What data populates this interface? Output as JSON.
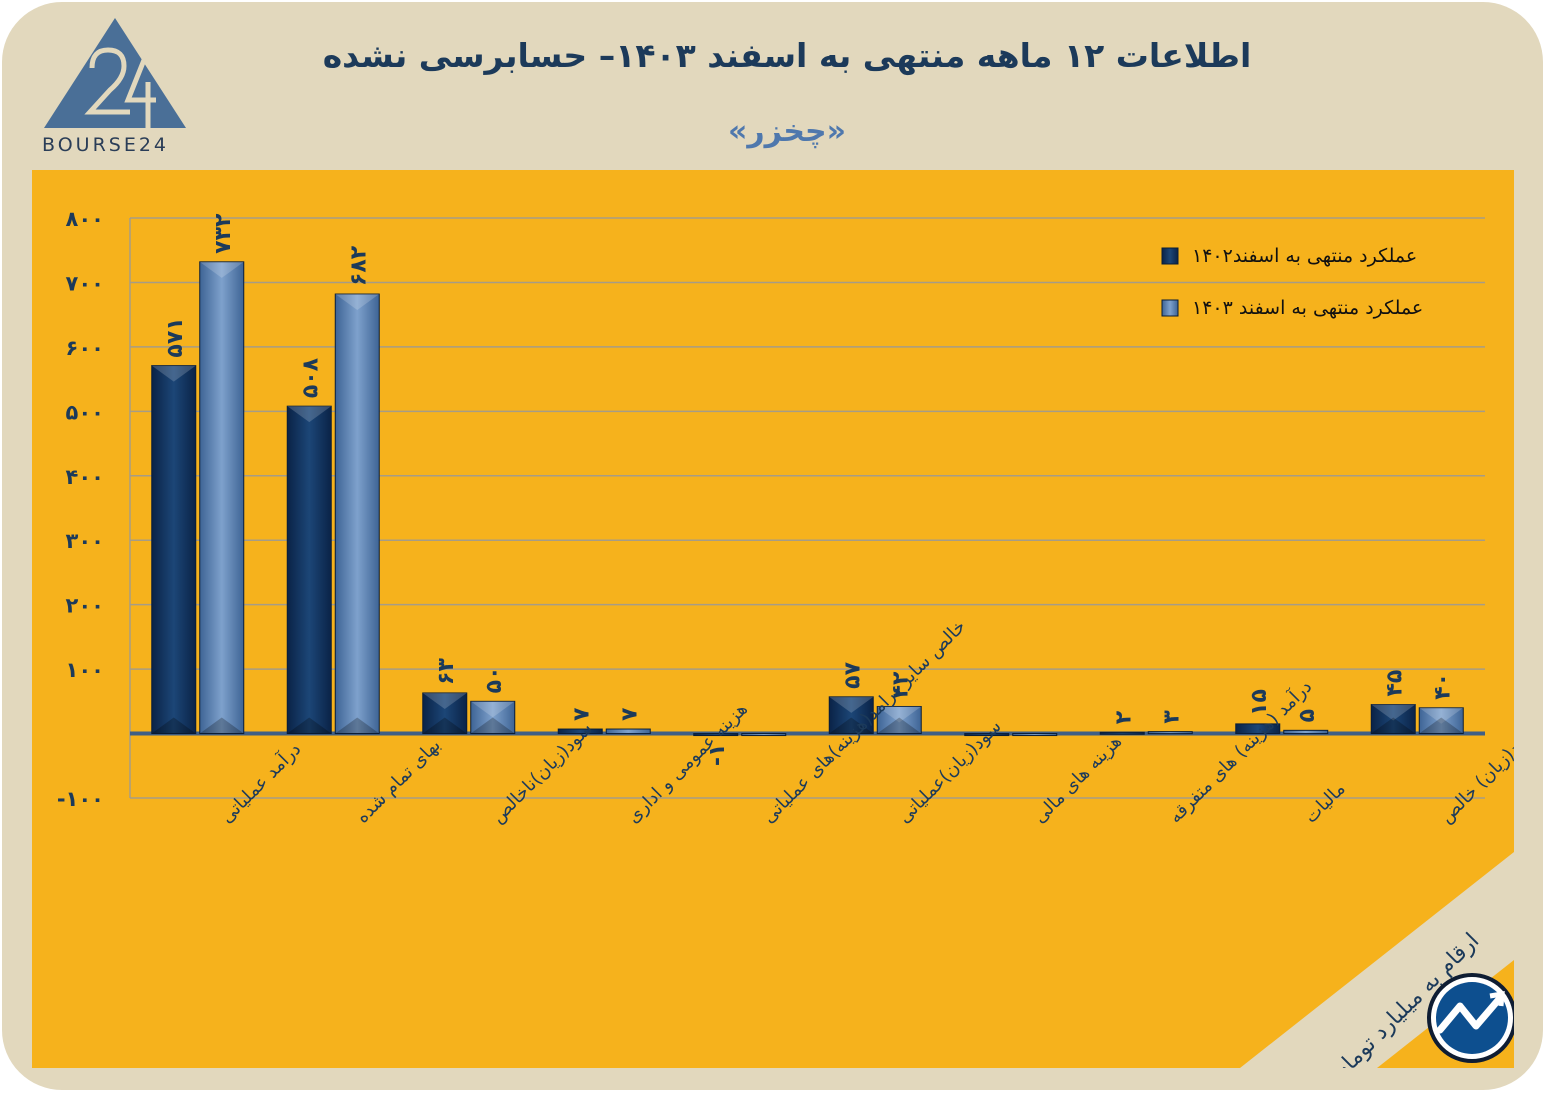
{
  "header": {
    "logo_text": "BOURSE24",
    "title": "اطلاعات ۱۲ ماهه منتهی به اسفند ۱۴۰۳– حسابرسی نشده",
    "subtitle": "«چخزر»",
    "unit_note": "ارقام به میلیارد تومان"
  },
  "colors": {
    "background": "#e2d8bd",
    "panel": "#f6b21c",
    "series_1402": "#0f2e55",
    "series_1403": "#5a7fb0",
    "title": "#1c3a5a",
    "subtitle": "#4f78ad"
  },
  "chart_data": {
    "type": "bar",
    "categories": [
      "درآمد عملیاتی",
      "بهای تمام شده",
      "سود(زیان)ناخالص",
      "هزینه عمومی و اداری",
      "خالص سایر درامد(هزینه)های عملیاتی",
      "سود(زیان)عملیاتی",
      "هزینه های مالی",
      "درآمد (هزینه) های متفرقه",
      "مالیات",
      "سود(زیان) خالص"
    ],
    "series": [
      {
        "name": "عملکرد منتهی به اسفند۱۴۰۲",
        "values": [
          571,
          508,
          63,
          7,
          -1,
          57,
          0,
          2,
          15,
          45
        ],
        "labels": [
          "۵۷۱",
          "۵۰۸",
          "۶۳",
          "۷",
          "-۱",
          "۵۷",
          "",
          "۲",
          "۱۵",
          "۴۵"
        ]
      },
      {
        "name": "عملکرد منتهی به اسفند ۱۴۰۳",
        "values": [
          732,
          682,
          50,
          7,
          0,
          42,
          0,
          3,
          5,
          40
        ],
        "labels": [
          "۷۳۲",
          "۶۸۲",
          "۵۰",
          "۷",
          "",
          "۴۲",
          "",
          "۳",
          "۵",
          "۴۰"
        ]
      }
    ],
    "ylim": [
      -100,
      800
    ],
    "yticks": [
      -100,
      0,
      100,
      200,
      300,
      400,
      500,
      600,
      700,
      800
    ],
    "ytick_labels": [
      "-۱۰۰",
      "",
      "۱۰۰",
      "۲۰۰",
      "۳۰۰",
      "۴۰۰",
      "۵۰۰",
      "۶۰۰",
      "۷۰۰",
      "۸۰۰"
    ],
    "grid": true,
    "legend": "top-right"
  }
}
